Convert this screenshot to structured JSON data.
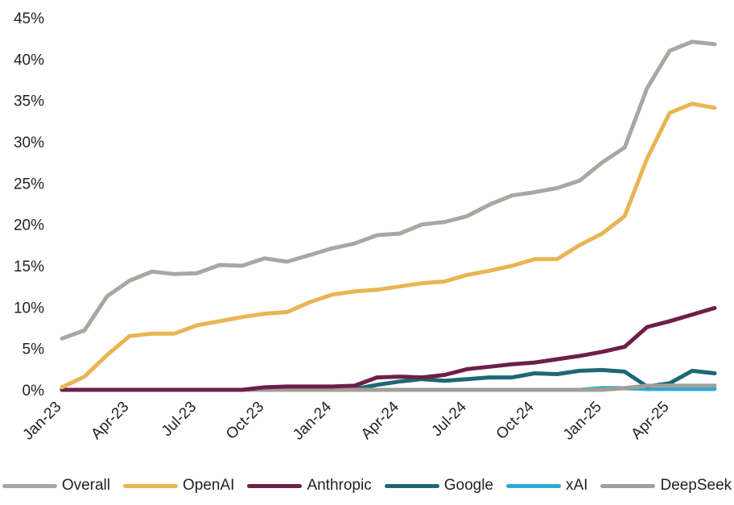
{
  "chart_data": {
    "type": "line",
    "title": "",
    "xlabel": "",
    "ylabel": "",
    "x": [
      "Jan-23",
      "Feb-23",
      "Mar-23",
      "Apr-23",
      "May-23",
      "Jun-23",
      "Jul-23",
      "Aug-23",
      "Sep-23",
      "Oct-23",
      "Nov-23",
      "Dec-23",
      "Jan-24",
      "Feb-24",
      "Mar-24",
      "Apr-24",
      "May-24",
      "Jun-24",
      "Jul-24",
      "Aug-24",
      "Sep-24",
      "Oct-24",
      "Nov-24",
      "Dec-24",
      "Jan-25",
      "Feb-25",
      "Mar-25",
      "Apr-25",
      "May-25",
      "Jun-25"
    ],
    "x_tick_labels": [
      "Jan-23",
      "Apr-23",
      "Jul-23",
      "Oct-23",
      "Jan-24",
      "Apr-24",
      "Jul-24",
      "Oct-24",
      "Jan-25",
      "Apr-25"
    ],
    "ylim": [
      0,
      45
    ],
    "y_tick_labels": [
      "0%",
      "5%",
      "10%",
      "15%",
      "20%",
      "25%",
      "30%",
      "35%",
      "40%",
      "45%"
    ],
    "grid": false,
    "legend_position": "bottom",
    "series": [
      {
        "name": "Overall",
        "color": "#aaa7a1",
        "values": [
          6.2,
          7.2,
          11.3,
          13.2,
          14.3,
          14.0,
          14.1,
          15.1,
          15.0,
          15.9,
          15.5,
          16.3,
          17.1,
          17.7,
          18.7,
          18.9,
          20.0,
          20.3,
          21.0,
          22.4,
          23.5,
          23.9,
          24.4,
          25.3,
          27.5,
          29.3,
          36.5,
          41.0,
          42.1,
          41.8
        ]
      },
      {
        "name": "OpenAI",
        "color": "#e8b553",
        "values": [
          0.3,
          1.6,
          4.2,
          6.5,
          6.8,
          6.8,
          7.8,
          8.3,
          8.8,
          9.2,
          9.4,
          10.6,
          11.5,
          11.9,
          12.1,
          12.5,
          12.9,
          13.1,
          13.9,
          14.4,
          15.0,
          15.8,
          15.8,
          17.5,
          18.9,
          21.0,
          28.0,
          33.5,
          34.6,
          34.1
        ]
      },
      {
        "name": "Anthropic",
        "color": "#6e1f48",
        "values": [
          0,
          0,
          0,
          0,
          0,
          0,
          0,
          0,
          0,
          0.3,
          0.4,
          0.4,
          0.4,
          0.5,
          1.5,
          1.6,
          1.5,
          1.8,
          2.5,
          2.8,
          3.1,
          3.3,
          3.7,
          4.1,
          4.6,
          5.2,
          7.6,
          8.3,
          9.1,
          9.9
        ]
      },
      {
        "name": "Google",
        "color": "#1e6875",
        "values": [
          0,
          0,
          0,
          0,
          0,
          0,
          0,
          0,
          0,
          0,
          0,
          0,
          0,
          0.1,
          0.6,
          1.0,
          1.3,
          1.1,
          1.3,
          1.5,
          1.5,
          2.0,
          1.9,
          2.3,
          2.4,
          2.2,
          0.4,
          0.8,
          2.3,
          2.0
        ]
      },
      {
        "name": "xAI",
        "color": "#2fa9d2",
        "values": [
          0,
          0,
          0,
          0,
          0,
          0,
          0,
          0,
          0,
          0,
          0,
          0,
          0,
          0,
          0,
          0,
          0,
          0,
          0,
          0,
          0,
          0,
          0,
          0,
          0.2,
          0.2,
          0.1,
          0.1,
          0.1,
          0.1
        ]
      },
      {
        "name": "DeepSeek",
        "color": "#a19e98",
        "values": [
          0,
          0,
          0,
          0,
          0,
          0,
          0,
          0,
          0,
          0,
          0,
          0,
          0,
          0,
          0,
          0,
          0,
          0,
          0,
          0,
          0,
          0,
          0,
          0,
          0,
          0.2,
          0.5,
          0.5,
          0.5,
          0.5
        ]
      }
    ]
  }
}
